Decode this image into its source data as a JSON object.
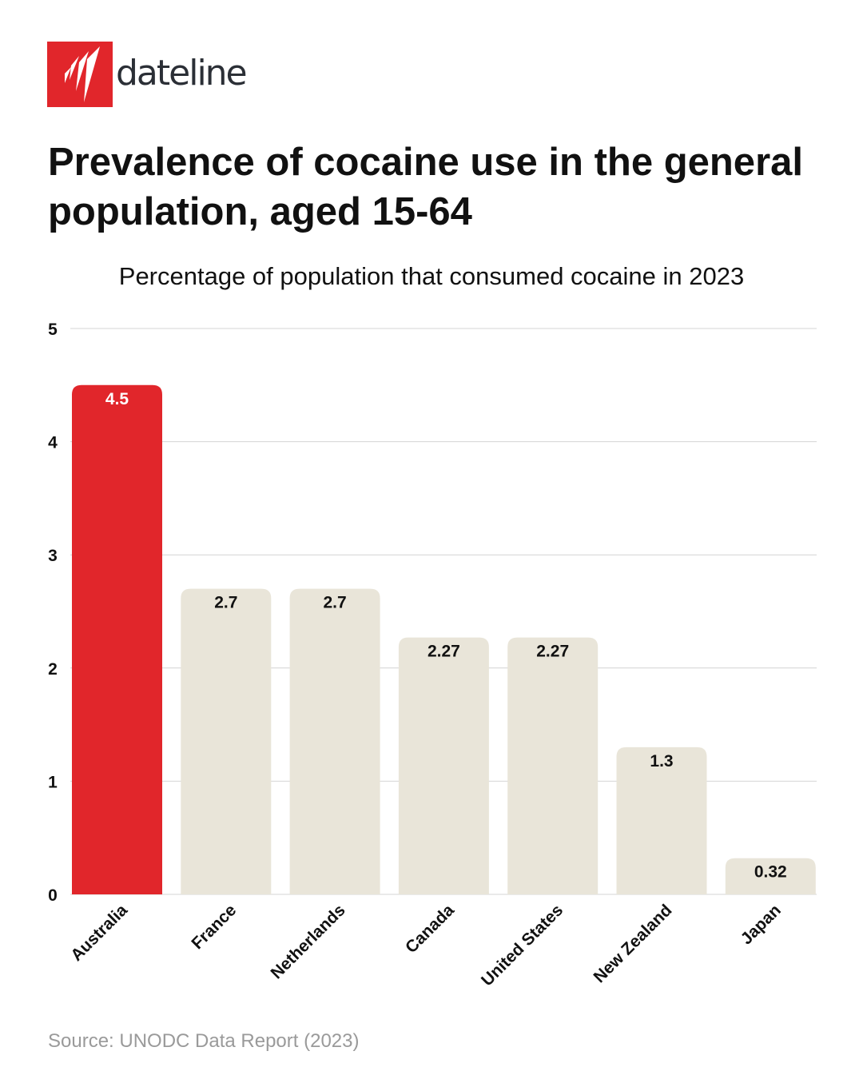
{
  "logo": {
    "brand": "dateline",
    "color": "#e1262b"
  },
  "title": "Prevalence of cocaine use in the general population, aged 15-64",
  "subtitle": "Percentage of population that consumed cocaine in 2023",
  "source": "Source: UNODC Data Report (2023)",
  "chart_data": {
    "type": "bar",
    "categories": [
      "Australia",
      "France",
      "Netherlands",
      "Canada",
      "United States",
      "New Zealand",
      "Japan"
    ],
    "values": [
      4.5,
      2.7,
      2.7,
      2.27,
      2.27,
      1.3,
      0.32
    ],
    "data_labels": [
      "4.5",
      "2.7",
      "2.7",
      "2.27",
      "2.27",
      "1.3",
      "0.32"
    ],
    "ylim": [
      0,
      5
    ],
    "yticks": [
      0,
      1,
      2,
      3,
      4,
      5
    ],
    "grid": true,
    "highlight_color": "#e1262b",
    "bar_color": "#e9e5d9",
    "highlight_index": 0
  }
}
